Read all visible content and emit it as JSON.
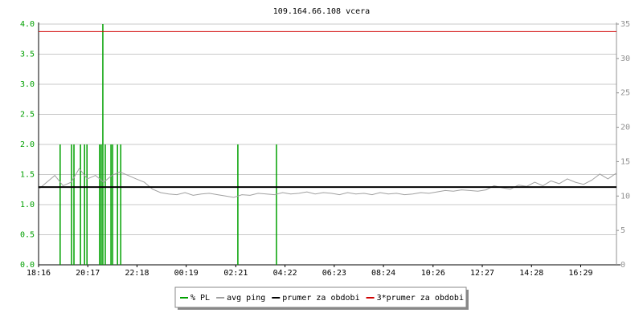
{
  "chart_data": {
    "type": "line",
    "title": "109.164.66.108 vcera",
    "xlim": [
      0,
      1421
    ],
    "xticks": [
      {
        "value": 0,
        "label": "18:16"
      },
      {
        "value": 121,
        "label": "20:17"
      },
      {
        "value": 242,
        "label": "22:18"
      },
      {
        "value": 363,
        "label": "00:19"
      },
      {
        "value": 485,
        "label": "02:21"
      },
      {
        "value": 606,
        "label": "04:22"
      },
      {
        "value": 727,
        "label": "06:23"
      },
      {
        "value": 848,
        "label": "08:24"
      },
      {
        "value": 970,
        "label": "10:26"
      },
      {
        "value": 1091,
        "label": "12:27"
      },
      {
        "value": 1212,
        "label": "14:28"
      },
      {
        "value": 1333,
        "label": "16:29"
      }
    ],
    "ylim": [
      0,
      4
    ],
    "yticks": [
      {
        "value": 0,
        "label": "0.0"
      },
      {
        "value": 0.5,
        "label": "0.5"
      },
      {
        "value": 1,
        "label": "1.0"
      },
      {
        "value": 1.5,
        "label": "1.5"
      },
      {
        "value": 2,
        "label": "2.0"
      },
      {
        "value": 2.5,
        "label": "2.5"
      },
      {
        "value": 3,
        "label": "3.0"
      },
      {
        "value": 3.5,
        "label": "3.5"
      },
      {
        "value": 4,
        "label": "4.0"
      }
    ],
    "y2lim": [
      0,
      35
    ],
    "y2ticks": [
      0,
      5,
      10,
      15,
      20,
      25,
      30,
      35
    ],
    "grid": true,
    "legend": "bottom",
    "series": [
      {
        "name": "% PL",
        "color": "#00a000",
        "style": "impulse",
        "x": [
          53,
          81,
          87,
          103,
          113,
          119,
          150,
          154,
          158,
          164,
          178,
          182,
          194,
          202,
          490,
          585
        ],
        "values": [
          2,
          2,
          2,
          2,
          2,
          2,
          2,
          2,
          4,
          2,
          2,
          2,
          2,
          2,
          2,
          2
        ]
      },
      {
        "name": "avg ping",
        "color": "#a0a0a0",
        "axis": "y2",
        "x": [
          0,
          20,
          40,
          60,
          80,
          100,
          120,
          140,
          160,
          180,
          200,
          220,
          240,
          260,
          280,
          300,
          320,
          340,
          360,
          380,
          400,
          420,
          440,
          460,
          480,
          500,
          520,
          540,
          560,
          580,
          600,
          620,
          640,
          660,
          680,
          700,
          720,
          740,
          760,
          780,
          800,
          820,
          840,
          860,
          880,
          900,
          920,
          940,
          960,
          980,
          1000,
          1020,
          1040,
          1060,
          1080,
          1100,
          1120,
          1140,
          1160,
          1180,
          1200,
          1220,
          1240,
          1260,
          1280,
          1300,
          1320,
          1340,
          1360,
          1380,
          1400,
          1420
        ],
        "values": [
          11,
          12,
          13,
          11.5,
          12,
          14,
          12.5,
          13,
          12,
          13,
          13.5,
          13,
          12.5,
          12,
          11,
          10.5,
          10.3,
          10.2,
          10.5,
          10.1,
          10.3,
          10.4,
          10.2,
          10,
          9.8,
          10.2,
          10.1,
          10.4,
          10.3,
          10.2,
          10.5,
          10.3,
          10.4,
          10.6,
          10.3,
          10.5,
          10.4,
          10.2,
          10.5,
          10.3,
          10.4,
          10.2,
          10.5,
          10.3,
          10.4,
          10.2,
          10.3,
          10.5,
          10.4,
          10.6,
          10.8,
          10.7,
          10.9,
          10.8,
          10.7,
          10.9,
          11.5,
          11.2,
          11,
          11.6,
          11.4,
          12,
          11.5,
          12.2,
          11.8,
          12.5,
          12,
          11.7,
          12.3,
          13.2,
          12.5,
          13.3
        ]
      },
      {
        "name": "prumer za obdobi",
        "color": "#000000",
        "axis": "y2",
        "x": [
          0,
          1421
        ],
        "values": [
          11.3,
          11.3
        ]
      },
      {
        "name": "3*prumer za obdobi",
        "color": "#d00000",
        "axis": "y2",
        "x": [
          0,
          1421
        ],
        "values": [
          33.9,
          33.9
        ]
      }
    ]
  }
}
